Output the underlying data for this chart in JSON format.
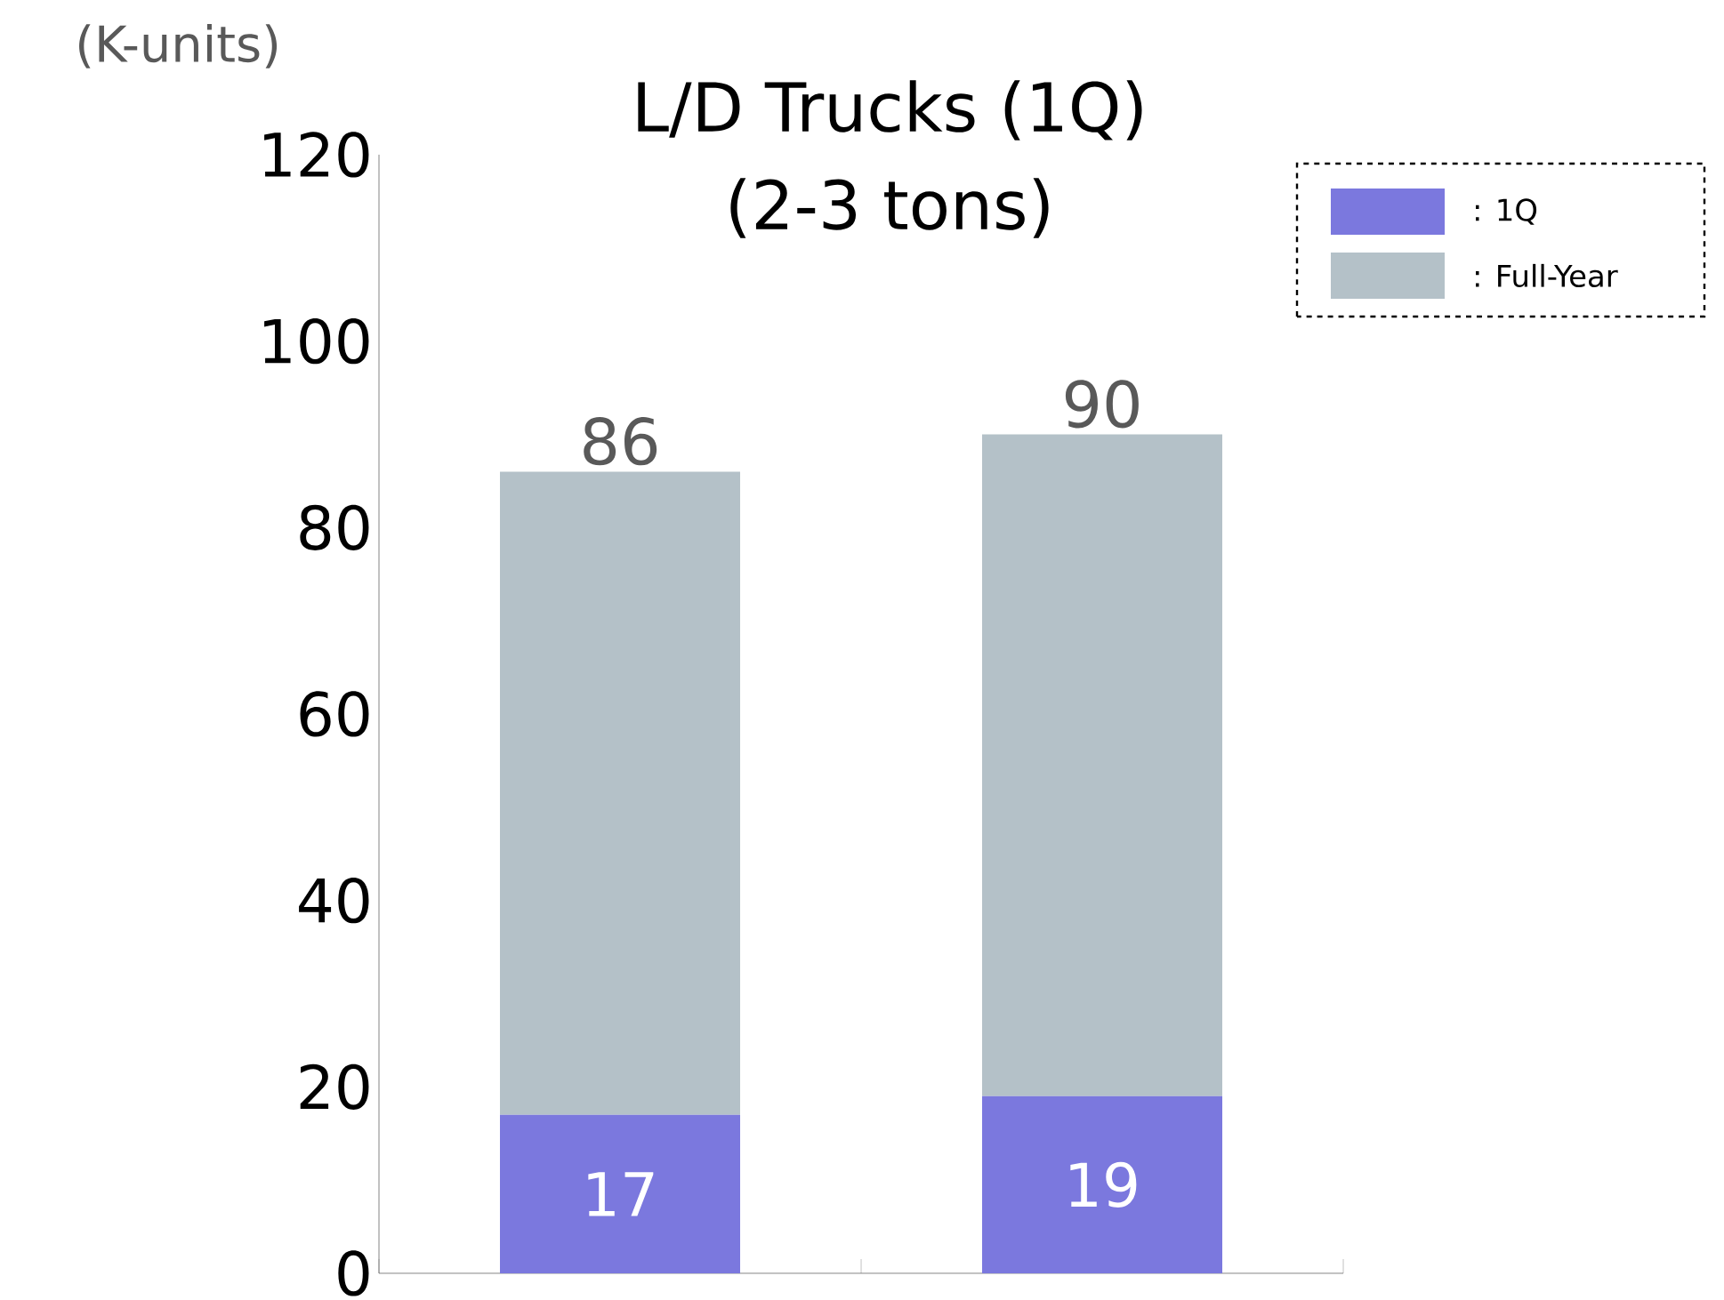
{
  "chart_data": {
    "type": "bar",
    "title": "L/D Trucks (1Q)",
    "subtitle": "(2-3 tons)",
    "annotations": [
      "(K-units)"
    ],
    "categories": [
      null,
      null
    ],
    "series": [
      {
        "name": ": 1Q",
        "color": "#7b78de",
        "values": [
          17,
          19
        ],
        "value_labels": [
          "17",
          "19"
        ]
      },
      {
        "name": ": Full-Year",
        "color": "#b4c1c8",
        "values": [
          69,
          71
        ],
        "value_labels": [
          null,
          null
        ]
      }
    ],
    "stacked": true,
    "totals": [
      "86",
      "90"
    ],
    "ylim": [
      0,
      120
    ],
    "yticks": [
      0,
      20,
      40,
      60,
      80,
      100,
      120
    ],
    "legend": "top right",
    "grid": false
  }
}
